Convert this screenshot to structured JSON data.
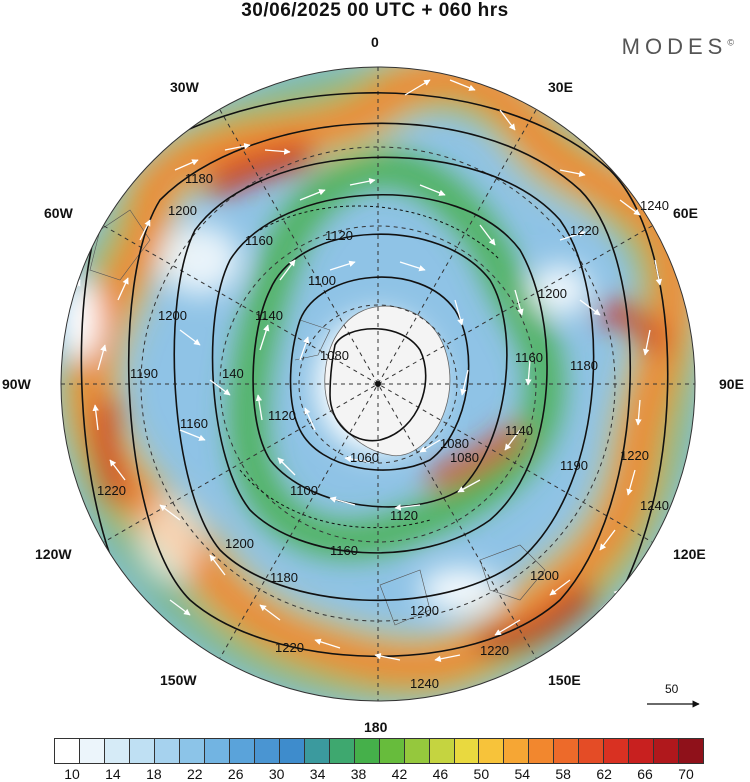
{
  "title": "30/06/2025  00 UTC  + 060 hrs",
  "logo": "MODES",
  "logo_mark": "©",
  "longitudes": {
    "l0": "0",
    "l30e": "30E",
    "l60e": "60E",
    "l90e": "90E",
    "l120e": "120E",
    "l150e": "150E",
    "l180": "180",
    "l150w": "150W",
    "l120w": "120W",
    "l90w": "90W",
    "l60w": "60W",
    "l30w": "30W"
  },
  "contour_labels": [
    "1180",
    "1200",
    "1160",
    "1120",
    "1240",
    "1220",
    "1200",
    "1100",
    "1140",
    "1200",
    "1080",
    "1160",
    "1180",
    "1190",
    "140",
    "1160",
    "1120",
    "1080",
    "1060",
    "1080",
    "1140",
    "1190",
    "1220",
    "1100",
    "1120",
    "1240",
    "1220",
    "1200",
    "1160",
    "1180",
    "1200",
    "1200",
    "1220",
    "1220",
    "1240"
  ],
  "scale_vector": "50",
  "colorbar": {
    "ticks": [
      "10",
      "14",
      "18",
      "22",
      "26",
      "30",
      "34",
      "38",
      "42",
      "46",
      "50",
      "54",
      "58",
      "62",
      "66",
      "70"
    ],
    "colors": [
      "#ffffff",
      "#ecf5fb",
      "#d6ebf7",
      "#bfe0f3",
      "#a6d2ee",
      "#8cc4e8",
      "#72b4e2",
      "#5aa3da",
      "#4a95d2",
      "#3e8ccc",
      "#3b9a9e",
      "#3ea86f",
      "#45b04a",
      "#67bc3c",
      "#95c83d",
      "#c5d440",
      "#e9d93f",
      "#f7c33a",
      "#f6a634",
      "#f2872e",
      "#ed6a2a",
      "#e44c26",
      "#d93122",
      "#c8201f",
      "#b0181c",
      "#8f111a"
    ]
  }
}
